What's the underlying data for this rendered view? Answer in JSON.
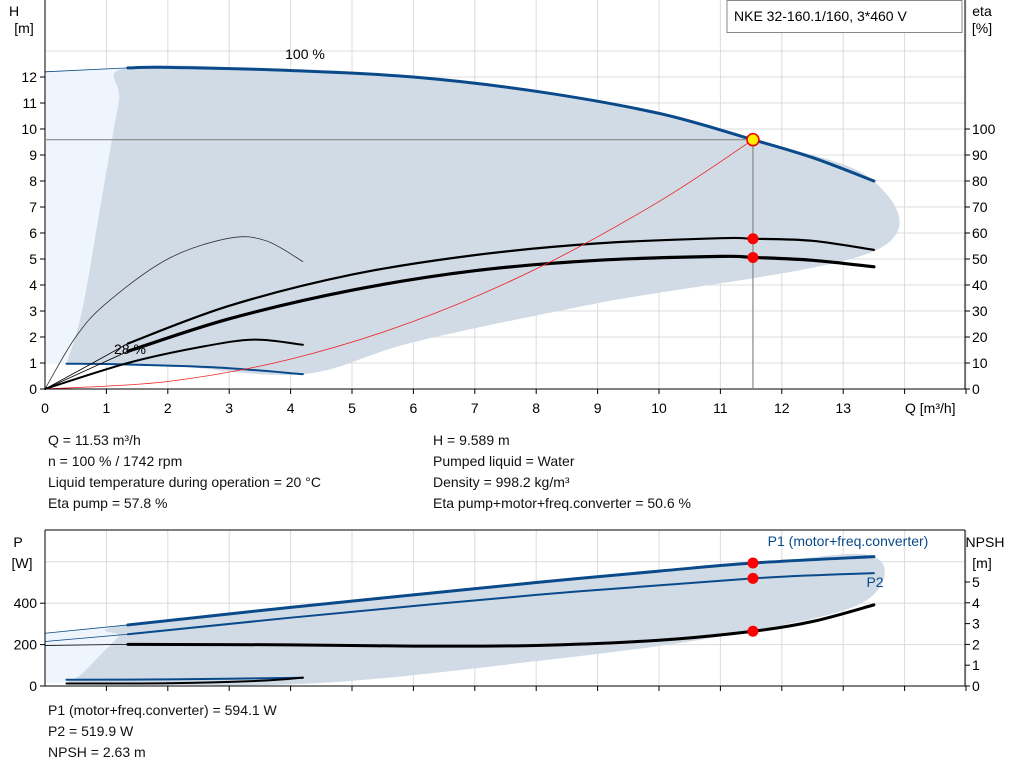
{
  "title": "NKE 32-160.1/160, 3*460 V",
  "chart_data": [
    {
      "type": "line",
      "name": "head-efficiency",
      "xlabel": "Q [m³/h]",
      "ylabel_left": [
        "H",
        "[m]"
      ],
      "ylabel_right": [
        "eta",
        "[%]"
      ],
      "xlim": [
        0,
        15
      ],
      "ylim_left": [
        0,
        13.5
      ],
      "ylim_right": [
        0,
        130
      ],
      "xticks": [
        0,
        1,
        2,
        3,
        4,
        5,
        6,
        7,
        8,
        9,
        10,
        11,
        12,
        13
      ],
      "yticks_left": [
        0,
        1,
        2,
        3,
        4,
        5,
        6,
        7,
        8,
        9,
        10,
        11,
        12
      ],
      "yticks_right": [
        0,
        10,
        20,
        30,
        40,
        50,
        60,
        70,
        80,
        90,
        100
      ],
      "grid": true,
      "annotations": [
        "100 %",
        "28 %"
      ],
      "operating_point": {
        "q": 11.53,
        "h": 9.589,
        "eta_pump": 57.8,
        "eta_total": 50.6
      },
      "operating_range": [
        [
          0.35,
          0.97
        ],
        [
          0.6,
          3
        ],
        [
          0.9,
          7
        ],
        [
          1.2,
          11
        ],
        [
          1.35,
          12.35
        ],
        [
          4,
          12.25
        ],
        [
          8,
          11.5
        ],
        [
          11.53,
          9.59
        ],
        [
          13.5,
          8
        ],
        [
          13.5,
          5.3
        ],
        [
          9,
          3.3
        ],
        [
          6,
          1.8
        ],
        [
          4.2,
          0.57
        ],
        [
          2,
          0.9
        ],
        [
          0.35,
          0.97
        ]
      ],
      "series": [
        {
          "key": "h100",
          "axis": "left",
          "x": [
            1.35,
            2,
            4,
            6,
            8,
            10,
            11.53,
            12.5,
            13.5
          ],
          "y": [
            12.35,
            12.37,
            12.25,
            12,
            11.45,
            10.6,
            9.589,
            8.9,
            8.0
          ],
          "ext_x": [
            0,
            1.35
          ],
          "ext_y": [
            12.2,
            12.35
          ],
          "color": "#0a4a8a",
          "width": 3
        },
        {
          "key": "h28",
          "axis": "left",
          "x": [
            0.35,
            1,
            2,
            3,
            4.2
          ],
          "y": [
            0.97,
            0.96,
            0.9,
            0.8,
            0.57
          ],
          "color": "#0a4a8a",
          "width": 2
        },
        {
          "key": "eta_pump",
          "axis": "right",
          "x": [
            1.35,
            3,
            5,
            7,
            9,
            11,
            11.53,
            12.5,
            13.5
          ],
          "y": [
            17.5,
            32,
            44,
            51.5,
            56,
            58,
            57.8,
            57,
            53.5
          ],
          "ext_x": [
            0,
            0.7,
            1.35
          ],
          "ext_y": [
            0,
            9,
            17.5
          ],
          "color": "#000",
          "width": 2.2
        },
        {
          "key": "eta_total",
          "axis": "right",
          "x": [
            1.35,
            3,
            5,
            7,
            9,
            11,
            11.53,
            12.5,
            13.5
          ],
          "y": [
            14.5,
            27,
            38,
            45.5,
            49.5,
            51,
            50.6,
            49.5,
            47
          ],
          "ext_x": [
            0,
            0.7,
            1.35
          ],
          "ext_y": [
            0,
            7.5,
            14.5
          ],
          "color": "#000",
          "width": 3.2
        },
        {
          "key": "eta28_thin",
          "axis": "right",
          "x": [
            0,
            0.5,
            1,
            2,
            3,
            3.6,
            4.2
          ],
          "y": [
            0,
            20,
            33,
            50,
            58,
            57,
            49
          ],
          "color": "#333",
          "width": 0.8
        },
        {
          "key": "eta28",
          "axis": "right",
          "x": [
            0,
            1.35,
            2.5,
            3.4,
            4.2
          ],
          "y": [
            0,
            10,
            16,
            19,
            17
          ],
          "color": "#000",
          "width": 2
        },
        {
          "key": "system",
          "axis": "left",
          "x": [
            0,
            2,
            4,
            6,
            8,
            10,
            11.53
          ],
          "y": [
            0,
            0.29,
            1.15,
            2.6,
            4.62,
            7.21,
            9.589
          ],
          "color": "#f02020",
          "width": 0.8
        }
      ]
    },
    {
      "type": "line",
      "name": "power-npsh",
      "ylabel_left": [
        "P",
        "[W]"
      ],
      "ylabel_right": [
        "NPSH",
        "[m]"
      ],
      "xlim": [
        0,
        15
      ],
      "ylim_left": [
        0,
        750
      ],
      "ylim_right": [
        0,
        7.5
      ],
      "yticks_left": [
        0,
        200,
        400
      ],
      "yticks_right": [
        0,
        1,
        2,
        3,
        4,
        5
      ],
      "grid": true,
      "legend": [
        "P1 (motor+freq.converter)",
        "P2"
      ],
      "operating_point": {
        "q": 11.53,
        "p1": 594.1,
        "p2": 519.9,
        "npsh": 2.63
      },
      "operating_range": [
        [
          0.35,
          15
        ],
        [
          0.6,
          60
        ],
        [
          0.9,
          150
        ],
        [
          1.2,
          240
        ],
        [
          1.35,
          295
        ],
        [
          6,
          440
        ],
        [
          11.53,
          594
        ],
        [
          13.5,
          625
        ],
        [
          13.3,
          400
        ],
        [
          11,
          240
        ],
        [
          8,
          120
        ],
        [
          4.2,
          10
        ],
        [
          0.35,
          15
        ]
      ],
      "series": [
        {
          "key": "p1",
          "axis": "left",
          "x": [
            1.35,
            4,
            6,
            8,
            10,
            11.53,
            13.5
          ],
          "y": [
            295,
            380,
            440,
            500,
            555,
            594.1,
            625
          ],
          "ext_x": [
            0,
            1.35
          ],
          "ext_y": [
            255,
            295
          ],
          "color": "#0a4a8a",
          "width": 3
        },
        {
          "key": "p2",
          "axis": "left",
          "x": [
            1.35,
            4,
            8,
            11.53,
            13.5
          ],
          "y": [
            250,
            330,
            440,
            519.9,
            545
          ],
          "ext_x": [
            0,
            1.35
          ],
          "ext_y": [
            215,
            250
          ],
          "color": "#0a4a8a",
          "width": 2
        },
        {
          "key": "npsh",
          "axis": "right",
          "x": [
            1.35,
            4,
            6,
            8,
            10,
            11.53,
            12.5,
            13.5
          ],
          "y": [
            2.0,
            1.98,
            1.92,
            1.95,
            2.2,
            2.63,
            3.1,
            3.9
          ],
          "ext_x": [
            0,
            1.35
          ],
          "ext_y": [
            1.95,
            2.0
          ],
          "color": "#000",
          "width": 3
        },
        {
          "key": "p1_28",
          "axis": "left",
          "x": [
            0.35,
            2,
            4.2
          ],
          "y": [
            30,
            32,
            40
          ],
          "color": "#0a4a8a",
          "width": 2
        },
        {
          "key": "npsh28",
          "axis": "right",
          "x": [
            0.35,
            2,
            3.5,
            4.2
          ],
          "y": [
            0.12,
            0.13,
            0.25,
            0.4
          ],
          "color": "#000",
          "width": 2
        }
      ]
    }
  ],
  "info_top_left": [
    "Q = 11.53 m³/h",
    "n = 100 % / 1742 rpm",
    "Liquid temperature during operation = 20 °C",
    "Eta pump = 57.8 %"
  ],
  "info_top_right": [
    "H = 9.589 m",
    "Pumped liquid = Water",
    "Density = 998.2 kg/m³",
    "Eta pump+motor+freq.converter = 50.6 %"
  ],
  "info_bottom": [
    "P1 (motor+freq.converter) = 594.1 W",
    "P2 = 519.9 W",
    "NPSH = 2.63 m"
  ],
  "colors": {
    "curve": "#0a4a8a",
    "range": "#d0dbe6",
    "range_ext": "#eef5fc",
    "point": "#ff0000",
    "op_point": "#ffee00"
  }
}
